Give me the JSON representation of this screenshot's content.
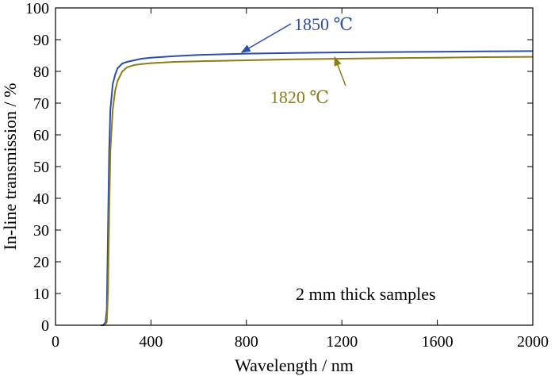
{
  "chart_data": {
    "type": "line",
    "title": "",
    "xlabel": "Wavelength / nm",
    "ylabel": "In-line transmission / %",
    "xlim": [
      0,
      2000
    ],
    "ylim": [
      0,
      100
    ],
    "x_ticks": [
      0,
      400,
      800,
      1200,
      1600,
      2000
    ],
    "y_ticks": [
      0,
      10,
      20,
      30,
      40,
      50,
      60,
      70,
      80,
      90,
      100
    ],
    "annotation": "2 mm thick samples",
    "series": [
      {
        "name": "1850 ℃",
        "color": "#2b4ea8",
        "x": [
          190,
          200,
          205,
          210,
          215,
          220,
          225,
          230,
          240,
          250,
          260,
          280,
          300,
          330,
          360,
          400,
          500,
          600,
          800,
          1000,
          1200,
          1400,
          1600,
          1800,
          2000
        ],
        "y": [
          0,
          0,
          0.5,
          1,
          5,
          30,
          55,
          68,
          76,
          79,
          81,
          82.5,
          83,
          83.5,
          84,
          84.3,
          84.8,
          85.2,
          85.6,
          85.8,
          86,
          86.1,
          86.2,
          86.3,
          86.4
        ]
      },
      {
        "name": "1820 ℃",
        "color": "#8a7d1c",
        "x": [
          205,
          215,
          220,
          225,
          230,
          240,
          250,
          260,
          280,
          300,
          330,
          360,
          400,
          500,
          600,
          800,
          1000,
          1200,
          1400,
          1600,
          1800,
          2000
        ],
        "y": [
          0,
          1,
          10,
          35,
          55,
          68,
          74,
          77,
          80,
          81.3,
          82,
          82.3,
          82.6,
          83,
          83.2,
          83.5,
          83.8,
          84,
          84.2,
          84.3,
          84.5,
          84.6
        ]
      }
    ],
    "labels": [
      {
        "text": "1850 ℃",
        "series": 0,
        "at_x": 1000,
        "at_y": 93,
        "arrow_to_x": 780,
        "arrow_to_y": 86
      },
      {
        "text": "1820 ℃",
        "series": 1,
        "at_x": 900,
        "at_y": 70,
        "arrow_to_x": 1170,
        "arrow_to_y": 84.5
      }
    ]
  }
}
